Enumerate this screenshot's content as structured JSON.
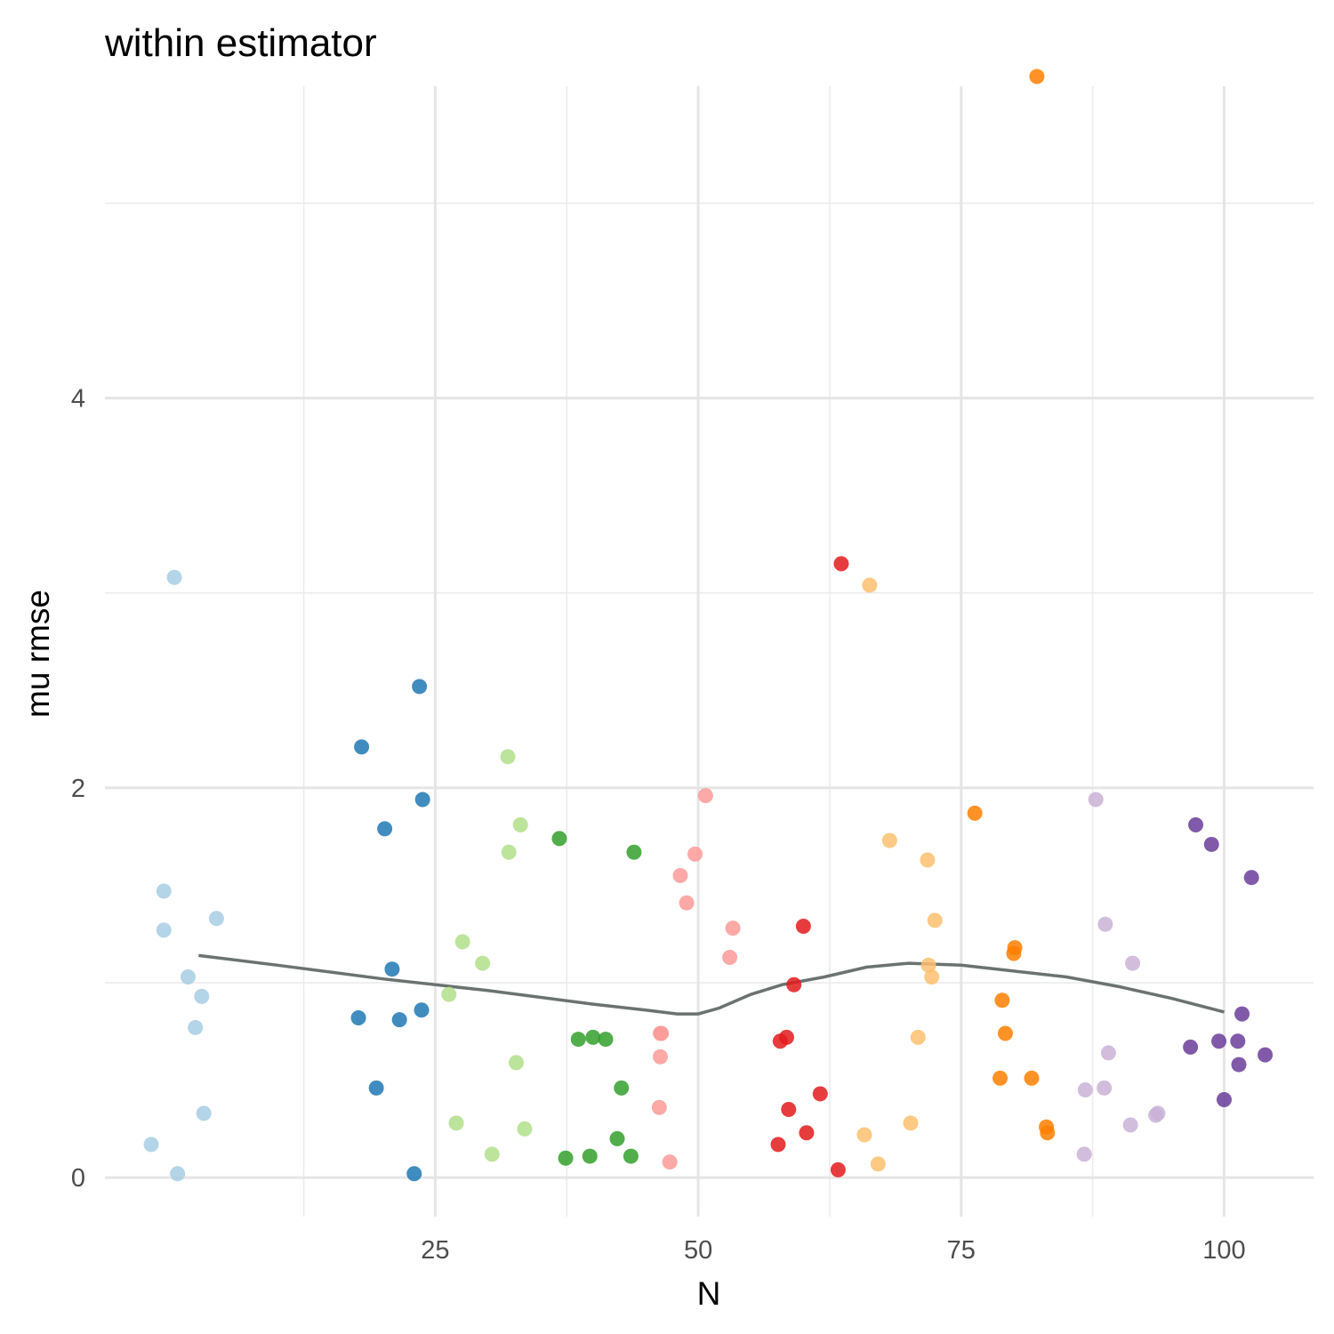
{
  "chart_data": {
    "type": "scatter",
    "title": "within estimator",
    "xlabel": "N",
    "ylabel": "mu rmse",
    "xlim": [
      -6.4,
      108.5
    ],
    "ylim": [
      -0.2,
      5.6
    ],
    "x_ticks": [
      25,
      50,
      75,
      100
    ],
    "y_ticks": [
      0,
      2,
      4
    ],
    "x_minor_ticks": [
      12.5,
      37.5,
      62.5,
      87.5
    ],
    "y_minor_ticks": [
      1,
      3,
      5
    ],
    "grid": true,
    "legend": "none",
    "palette": [
      "#a6cee3",
      "#1f78b4",
      "#b2df8a",
      "#33a02c",
      "#fb9a99",
      "#e31a1c",
      "#fdbf6f",
      "#ff7f00",
      "#cab2d6",
      "#6a3d9a"
    ],
    "series": [
      {
        "group": 1,
        "x": [
          -2.0,
          -0.8,
          -0.8,
          0.2,
          0.5,
          1.5,
          2.2,
          2.8,
          3.0,
          4.2
        ],
        "y": [
          0.17,
          1.47,
          1.27,
          3.08,
          0.02,
          1.03,
          0.77,
          0.93,
          0.33,
          1.33
        ]
      },
      {
        "group": 2,
        "x": [
          17.7,
          18.0,
          19.4,
          20.2,
          20.9,
          21.6,
          23.0,
          23.5,
          23.7,
          23.8
        ],
        "y": [
          0.82,
          2.21,
          0.46,
          1.79,
          1.07,
          0.81,
          0.02,
          2.52,
          0.86,
          1.94
        ]
      },
      {
        "group": 3,
        "x": [
          26.3,
          27.0,
          27.6,
          29.5,
          30.4,
          31.9,
          32.0,
          32.7,
          33.1,
          33.5
        ],
        "y": [
          0.94,
          0.28,
          1.21,
          1.1,
          0.12,
          2.16,
          1.67,
          0.59,
          1.81,
          0.25
        ]
      },
      {
        "group": 4,
        "x": [
          36.8,
          37.4,
          38.6,
          39.7,
          40.0,
          41.2,
          42.3,
          42.7,
          43.6,
          43.9
        ],
        "y": [
          1.74,
          0.1,
          0.71,
          0.11,
          0.72,
          0.71,
          0.2,
          0.46,
          0.11,
          1.67
        ]
      },
      {
        "group": 5,
        "x": [
          46.3,
          46.4,
          46.4,
          46.5,
          47.3,
          48.3,
          48.9,
          49.7,
          50.7,
          53.0,
          53.3
        ],
        "y": [
          0.36,
          0.62,
          0.74,
          0.74,
          0.08,
          1.55,
          1.41,
          1.66,
          1.96,
          1.13,
          1.28
        ]
      },
      {
        "group": 6,
        "x": [
          57.6,
          57.8,
          58.4,
          58.6,
          59.1,
          60.0,
          60.3,
          61.6,
          63.3,
          63.6
        ],
        "y": [
          0.17,
          0.7,
          0.72,
          0.35,
          0.99,
          1.29,
          0.23,
          0.43,
          0.04,
          3.15
        ]
      },
      {
        "group": 7,
        "x": [
          65.8,
          66.3,
          67.1,
          68.2,
          70.2,
          70.9,
          71.8,
          71.9,
          72.2,
          72.5
        ],
        "y": [
          0.22,
          3.04,
          0.07,
          1.73,
          0.28,
          0.72,
          1.63,
          1.09,
          1.03,
          1.32
        ]
      },
      {
        "group": 8,
        "x": [
          76.3,
          78.7,
          78.9,
          79.2,
          80.0,
          80.1,
          81.7,
          83.1,
          83.2,
          82.2
        ],
        "y": [
          1.87,
          0.51,
          0.91,
          0.74,
          1.15,
          1.18,
          0.51,
          0.26,
          0.23,
          5.65
        ]
      },
      {
        "group": 9,
        "x": [
          86.7,
          86.8,
          87.8,
          88.6,
          88.7,
          89.0,
          91.1,
          91.3,
          93.5,
          93.7
        ],
        "y": [
          0.12,
          0.45,
          1.94,
          0.46,
          1.3,
          0.64,
          0.27,
          1.1,
          0.32,
          0.33
        ]
      },
      {
        "group": 10,
        "x": [
          96.8,
          97.3,
          98.8,
          99.5,
          100.0,
          101.3,
          101.4,
          101.7,
          102.6,
          103.9
        ],
        "y": [
          0.67,
          1.81,
          1.71,
          0.7,
          0.4,
          0.7,
          0.58,
          0.84,
          1.54,
          0.63
        ]
      }
    ],
    "smooth": {
      "x": [
        2.5,
        10,
        20,
        30,
        40,
        45,
        48,
        50,
        52,
        55,
        58,
        62,
        66,
        70,
        75,
        80,
        85,
        90,
        95,
        100
      ],
      "y": [
        1.14,
        1.09,
        1.02,
        0.96,
        0.89,
        0.86,
        0.84,
        0.84,
        0.87,
        0.94,
        0.99,
        1.03,
        1.08,
        1.1,
        1.09,
        1.06,
        1.03,
        0.98,
        0.92,
        0.85
      ]
    }
  }
}
